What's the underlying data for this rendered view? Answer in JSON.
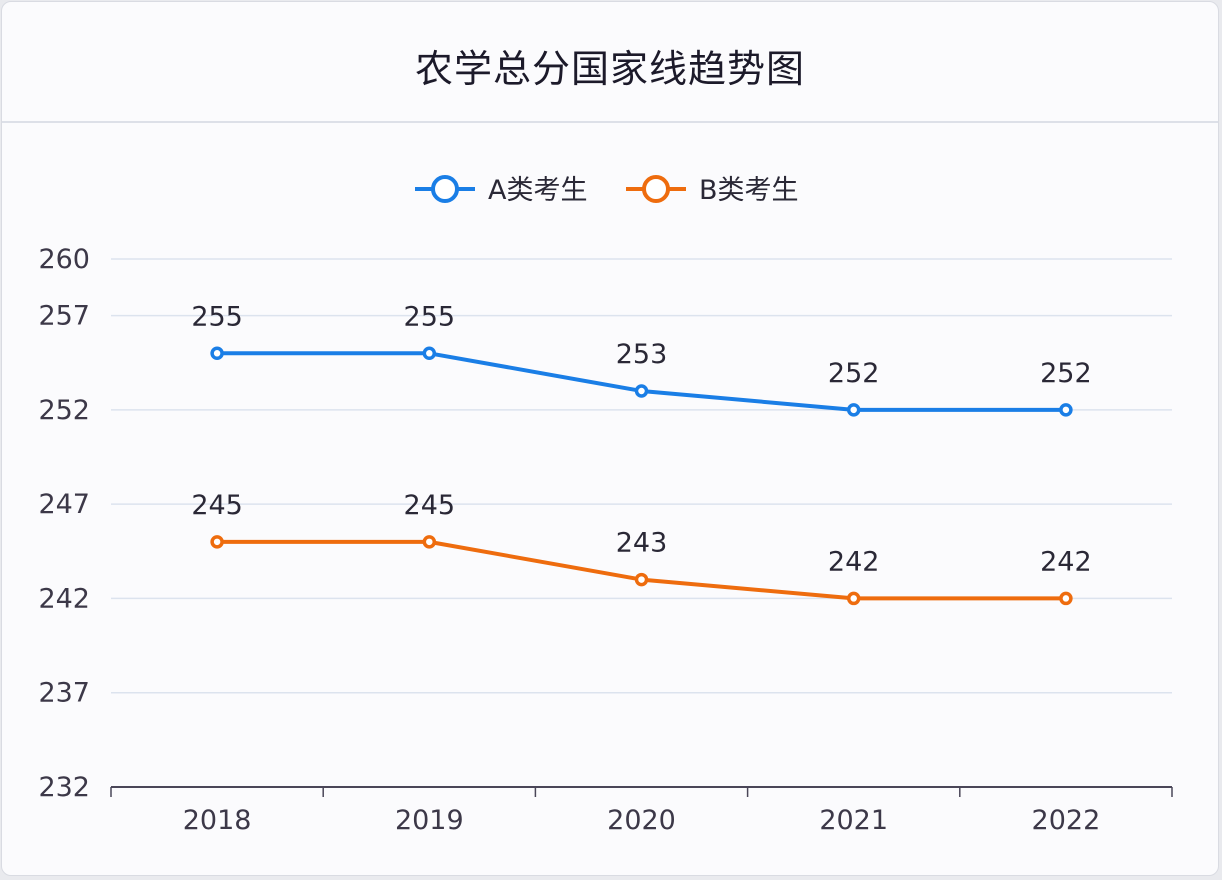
{
  "title": "农学总分国家线趋势图",
  "legend": [
    {
      "label": "A类考生",
      "color": "#1a7ee6"
    },
    {
      "label": "B类考生",
      "color": "#ee6c0e"
    }
  ],
  "chart_data": {
    "type": "line",
    "title": "农学总分国家线趋势图",
    "xlabel": "",
    "ylabel": "",
    "categories": [
      "2018",
      "2019",
      "2020",
      "2021",
      "2022"
    ],
    "series": [
      {
        "name": "A类考生",
        "values": [
          255,
          255,
          253,
          252,
          252
        ],
        "color": "#1a7ee6"
      },
      {
        "name": "B类考生",
        "values": [
          245,
          245,
          243,
          242,
          242
        ],
        "color": "#ee6c0e"
      }
    ],
    "yticks": [
      260,
      257,
      252,
      247,
      242,
      237,
      232
    ],
    "ylim": [
      232,
      260
    ],
    "grid": true,
    "legend_position": "top-center",
    "data_labels": true
  }
}
